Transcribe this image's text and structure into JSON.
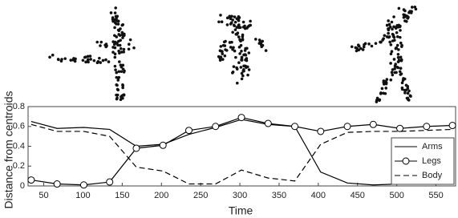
{
  "chart_data": {
    "type": "line",
    "xlabel": "Time",
    "ylabel": "Distance from centroids",
    "x": [
      34,
      67,
      101,
      134,
      168,
      202,
      235,
      269,
      302,
      336,
      370,
      403,
      437,
      470,
      504,
      538,
      571
    ],
    "series": [
      {
        "name": "Arms",
        "color": "#000000",
        "linestyle": "solid",
        "marker": "none",
        "values": [
          0.65,
          0.58,
          0.59,
          0.57,
          0.4,
          0.42,
          0.52,
          0.59,
          0.67,
          0.62,
          0.6,
          0.14,
          0.03,
          0.01,
          0.02,
          0.03,
          0.04
        ]
      },
      {
        "name": "Legs",
        "color": "#000000",
        "linestyle": "solid",
        "marker": "circle",
        "values": [
          0.06,
          0.02,
          0.01,
          0.04,
          0.38,
          0.41,
          0.56,
          0.6,
          0.69,
          0.63,
          0.6,
          0.55,
          0.6,
          0.62,
          0.58,
          0.6,
          0.61
        ]
      },
      {
        "name": "Body",
        "color": "#000000",
        "linestyle": "dashed",
        "marker": "none",
        "values": [
          0.62,
          0.55,
          0.55,
          0.5,
          0.19,
          0.15,
          0.02,
          0.02,
          0.16,
          0.08,
          0.05,
          0.42,
          0.54,
          0.55,
          0.55,
          0.56,
          0.57
        ]
      }
    ],
    "xlim": [
      30,
      575
    ],
    "xticks": [
      50,
      100,
      150,
      200,
      250,
      300,
      350,
      400,
      450,
      500,
      550
    ],
    "ylim": [
      0,
      0.8
    ],
    "yticks": [
      0,
      0.2,
      0.4,
      0.6,
      0.8
    ],
    "grid": false,
    "legend": "lower right"
  }
}
